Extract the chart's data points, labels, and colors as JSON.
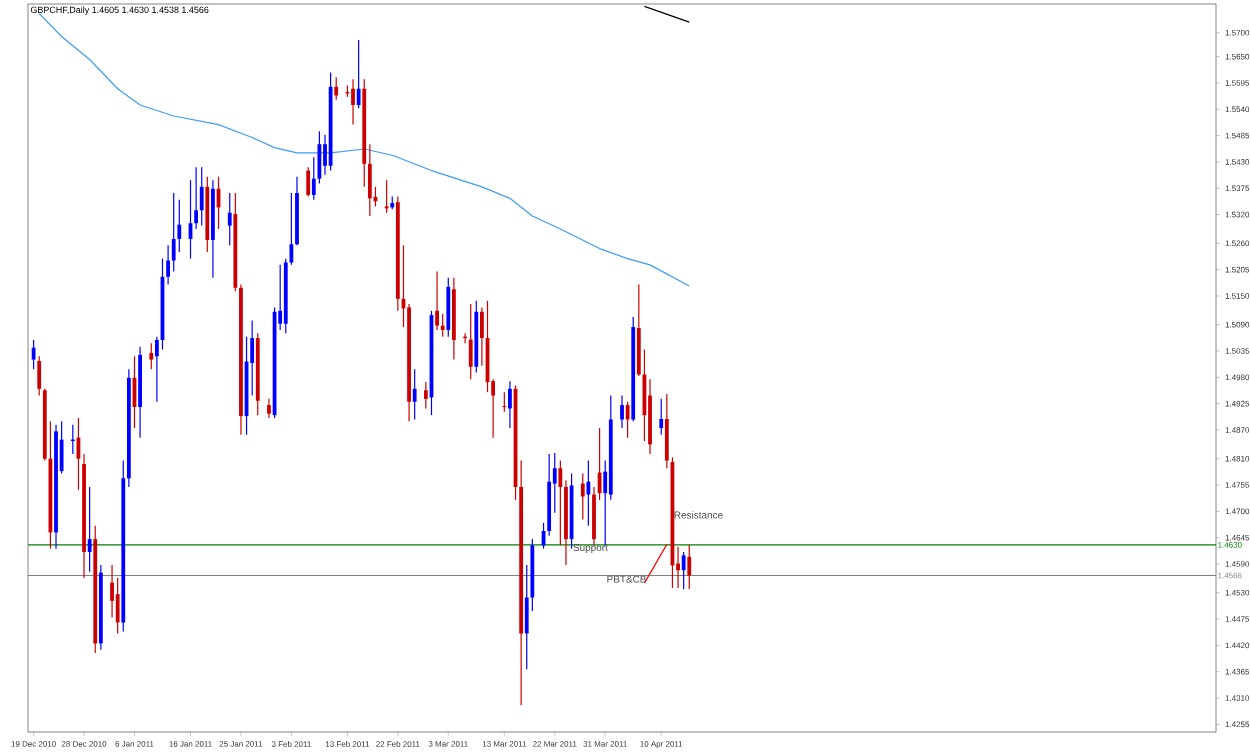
{
  "chart_data": {
    "type": "candlestick",
    "title": "GBPCHF,Daily  1.4605 1.4630 1.4538 1.4566",
    "x": [
      "2010-12-19",
      "2010-12-20",
      "2010-12-21",
      "2010-12-22",
      "2010-12-23",
      "2010-12-24",
      "2010-12-26",
      "2010-12-27",
      "2010-12-28",
      "2010-12-29",
      "2010-12-30",
      "2010-12-31",
      "2011-01-02",
      "2011-01-03",
      "2011-01-04",
      "2011-01-05",
      "2011-01-06",
      "2011-01-07",
      "2011-01-09",
      "2011-01-10",
      "2011-01-11",
      "2011-01-12",
      "2011-01-13",
      "2011-01-14",
      "2011-01-16",
      "2011-01-17",
      "2011-01-18",
      "2011-01-19",
      "2011-01-20",
      "2011-01-21",
      "2011-01-23",
      "2011-01-24",
      "2011-01-25",
      "2011-01-26",
      "2011-01-27",
      "2011-01-28",
      "2011-01-30",
      "2011-01-31",
      "2011-02-01",
      "2011-02-02",
      "2011-02-03",
      "2011-02-04",
      "2011-02-06",
      "2011-02-07",
      "2011-02-08",
      "2011-02-09",
      "2011-02-10",
      "2011-02-11",
      "2011-02-13",
      "2011-02-14",
      "2011-02-15",
      "2011-02-16",
      "2011-02-17",
      "2011-02-18",
      "2011-02-20",
      "2011-02-21",
      "2011-02-22",
      "2011-02-23",
      "2011-02-24",
      "2011-02-25",
      "2011-02-27",
      "2011-02-28",
      "2011-03-01",
      "2011-03-02",
      "2011-03-03",
      "2011-03-04",
      "2011-03-06",
      "2011-03-07",
      "2011-03-08",
      "2011-03-09",
      "2011-03-10",
      "2011-03-11",
      "2011-03-13",
      "2011-03-14",
      "2011-03-15",
      "2011-03-16",
      "2011-03-17",
      "2011-03-18",
      "2011-03-20",
      "2011-03-21",
      "2011-03-22",
      "2011-03-23",
      "2011-03-24",
      "2011-03-25",
      "2011-03-27",
      "2011-03-28",
      "2011-03-29",
      "2011-03-30",
      "2011-03-31",
      "2011-04-01",
      "2011-04-03",
      "2011-04-04",
      "2011-04-05",
      "2011-04-06",
      "2011-04-07",
      "2011-04-08",
      "2011-04-10",
      "2011-04-11",
      "2011-04-12",
      "2011-04-13",
      "2011-04-14",
      "2011-04-15"
    ],
    "ohlc": [
      [
        1.5017,
        1.5058,
        1.4997,
        1.5042
      ],
      [
        1.5014,
        1.5024,
        1.4942,
        1.4956
      ],
      [
        1.4953,
        1.4956,
        1.4806,
        1.481
      ],
      [
        1.481,
        1.4888,
        1.4622,
        1.4656
      ],
      [
        1.4656,
        1.4881,
        1.4622,
        1.4867
      ],
      [
        1.4784,
        1.4888,
        1.4779,
        1.485
      ],
      [
        1.4847,
        1.4881,
        1.482,
        1.485
      ],
      [
        1.4854,
        1.4895,
        1.4745,
        1.481
      ],
      [
        1.4799,
        1.482,
        1.4561,
        1.4615
      ],
      [
        1.4615,
        1.4751,
        1.4574,
        1.4642
      ],
      [
        1.4642,
        1.467,
        1.4404,
        1.4424
      ],
      [
        1.4424,
        1.4588,
        1.4411,
        1.4572
      ],
      [
        1.4551,
        1.4588,
        1.4479,
        1.4513
      ],
      [
        1.4527,
        1.4561,
        1.4445,
        1.4468
      ],
      [
        1.4468,
        1.4806,
        1.4449,
        1.4769
      ],
      [
        1.4769,
        1.4997,
        1.4751,
        1.4979
      ],
      [
        1.4979,
        1.5024,
        1.4874,
        1.4918
      ],
      [
        1.4918,
        1.5044,
        1.4854,
        1.5027
      ],
      [
        1.5031,
        1.5051,
        1.4997,
        1.5017
      ],
      [
        1.5024,
        1.5065,
        1.4929,
        1.5058
      ],
      [
        1.5058,
        1.5228,
        1.5038,
        1.519
      ],
      [
        1.519,
        1.5256,
        1.5174,
        1.5224
      ],
      [
        1.5224,
        1.5365,
        1.5201,
        1.5269
      ],
      [
        1.5269,
        1.5351,
        1.5242,
        1.5299
      ],
      [
        1.5269,
        1.5392,
        1.5228,
        1.5302
      ],
      [
        1.5302,
        1.5419,
        1.529,
        1.5329
      ],
      [
        1.5329,
        1.5419,
        1.5297,
        1.5378
      ],
      [
        1.5378,
        1.5399,
        1.5242,
        1.5267
      ],
      [
        1.5267,
        1.5392,
        1.5188,
        1.5374
      ],
      [
        1.5374,
        1.5399,
        1.529,
        1.5335
      ],
      [
        1.5297,
        1.5365,
        1.5256,
        1.5324
      ],
      [
        1.5321,
        1.5365,
        1.516,
        1.5167
      ],
      [
        1.5167,
        1.5174,
        1.486,
        1.4899
      ],
      [
        1.4899,
        1.5065,
        1.486,
        1.5013
      ],
      [
        1.501,
        1.5099,
        1.4942,
        1.5062
      ],
      [
        1.5062,
        1.5072,
        1.4901,
        1.4931
      ],
      [
        1.4922,
        1.4935,
        1.4895,
        1.4904
      ],
      [
        1.4901,
        1.5126,
        1.4895,
        1.5117
      ],
      [
        1.5092,
        1.5215,
        1.5079,
        1.5119
      ],
      [
        1.5092,
        1.5228,
        1.5072,
        1.522
      ],
      [
        1.522,
        1.5365,
        1.5215,
        1.5258
      ],
      [
        1.5258,
        1.5399,
        1.5256,
        1.5365
      ],
      [
        1.5412,
        1.5419,
        1.5358,
        1.5361
      ],
      [
        1.5361,
        1.544,
        1.5351,
        1.5395
      ],
      [
        1.5395,
        1.5494,
        1.5385,
        1.5467
      ],
      [
        1.5422,
        1.5487,
        1.5403,
        1.5467
      ],
      [
        1.5422,
        1.5617,
        1.5412,
        1.5587
      ],
      [
        1.5587,
        1.5607,
        1.556,
        1.5569
      ],
      [
        1.5576,
        1.559,
        1.5566,
        1.5573
      ],
      [
        1.5583,
        1.5603,
        1.5508,
        1.5549
      ],
      [
        1.5549,
        1.5685,
        1.5542,
        1.5583
      ],
      [
        1.5583,
        1.5603,
        1.5378,
        1.5426
      ],
      [
        1.5426,
        1.5467,
        1.5317,
        1.5354
      ],
      [
        1.5357,
        1.5378,
        1.5337,
        1.5348
      ],
      [
        1.5337,
        1.5392,
        1.5324,
        1.5333
      ],
      [
        1.5335,
        1.5358,
        1.5331,
        1.5344
      ],
      [
        1.5346,
        1.5358,
        1.5119,
        1.5144
      ],
      [
        1.5144,
        1.5256,
        1.5085,
        1.5124
      ],
      [
        1.5126,
        1.5133,
        1.4888,
        1.4929
      ],
      [
        1.4929,
        1.4997,
        1.4892,
        1.4956
      ],
      [
        1.4953,
        1.497,
        1.4915,
        1.4935
      ],
      [
        1.4938,
        1.5119,
        1.4901,
        1.511
      ],
      [
        1.5119,
        1.5201,
        1.5079,
        1.5088
      ],
      [
        1.5088,
        1.5113,
        1.5065,
        1.5079
      ],
      [
        1.5079,
        1.5188,
        1.5065,
        1.5169
      ],
      [
        1.5164,
        1.5188,
        1.5017,
        1.5058
      ],
      [
        1.5065,
        1.5072,
        1.5051,
        1.5062
      ],
      [
        1.5059,
        1.5133,
        1.4976,
        1.5002
      ],
      [
        1.5002,
        1.514,
        1.499,
        1.5117
      ],
      [
        1.5117,
        1.5126,
        1.5004,
        1.5062
      ],
      [
        1.5062,
        1.514,
        1.4949,
        1.497
      ],
      [
        1.4972,
        1.4976,
        1.4854,
        1.4942
      ],
      [
        1.492,
        1.4949,
        1.4908,
        1.4918
      ],
      [
        1.4915,
        1.4972,
        1.4874,
        1.4956
      ],
      [
        1.4956,
        1.4963,
        1.4724,
        1.4751
      ],
      [
        1.4751,
        1.4806,
        1.4295,
        1.4445
      ],
      [
        1.4445,
        1.4588,
        1.437,
        1.452
      ],
      [
        1.452,
        1.4642,
        1.4492,
        1.4629
      ],
      [
        1.4629,
        1.4676,
        1.4622,
        1.4659
      ],
      [
        1.4659,
        1.482,
        1.4649,
        1.4762
      ],
      [
        1.4758,
        1.4822,
        1.4697,
        1.479
      ],
      [
        1.479,
        1.4806,
        1.4629,
        1.4751
      ],
      [
        1.4751,
        1.4765,
        1.4588,
        1.4642
      ],
      [
        1.4642,
        1.4779,
        1.4622,
        1.4754
      ],
      [
        1.4758,
        1.4779,
        1.4683,
        1.4731
      ],
      [
        1.4735,
        1.4806,
        1.467,
        1.4762
      ],
      [
        1.4735,
        1.4751,
        1.4629,
        1.4642
      ],
      [
        1.4781,
        1.4874,
        1.4724,
        1.4738
      ],
      [
        1.4738,
        1.4806,
        1.4629,
        1.4783
      ],
      [
        1.4735,
        1.4942,
        1.4724,
        1.4892
      ],
      [
        1.4892,
        1.4942,
        1.4874,
        1.4922
      ],
      [
        1.4922,
        1.4929,
        1.4854,
        1.4892
      ],
      [
        1.4892,
        1.5106,
        1.4888,
        1.5085
      ],
      [
        1.5083,
        1.5174,
        1.4983,
        1.4986
      ],
      [
        1.4986,
        1.5038,
        1.4847,
        1.4901
      ],
      [
        1.4942,
        1.4976,
        1.482,
        1.484
      ],
      [
        1.4874,
        1.4935,
        1.486,
        1.4893
      ],
      [
        1.4893,
        1.4945,
        1.479,
        1.4806
      ],
      [
        1.4803,
        1.4813,
        1.454,
        1.4587
      ],
      [
        1.4591,
        1.4626,
        1.454,
        1.4577
      ],
      [
        1.4577,
        1.4615,
        1.4537,
        1.4608
      ],
      [
        1.4605,
        1.463,
        1.4538,
        1.4566
      ]
    ],
    "colors": [
      "#0000ff",
      "#cc0000",
      "#cc0000",
      "#cc0000",
      "#0000ff",
      "#0000ff",
      "#0000ff",
      "#cc0000",
      "#cc0000",
      "#0000ff",
      "#cc0000",
      "#0000ff",
      "#cc0000",
      "#cc0000",
      "#0000ff",
      "#0000ff",
      "#cc0000",
      "#0000ff",
      "#cc0000",
      "#0000ff",
      "#0000ff",
      "#0000ff",
      "#0000ff",
      "#0000ff",
      "#0000ff",
      "#0000ff",
      "#0000ff",
      "#cc0000",
      "#0000ff",
      "#cc0000",
      "#0000ff",
      "#cc0000",
      "#cc0000",
      "#0000ff",
      "#0000ff",
      "#cc0000",
      "#cc0000",
      "#0000ff",
      "#0000ff",
      "#0000ff",
      "#0000ff",
      "#0000ff",
      "#cc0000",
      "#0000ff",
      "#0000ff",
      "#0000ff",
      "#0000ff",
      "#cc0000",
      "#cc0000",
      "#cc0000",
      "#0000ff",
      "#cc0000",
      "#cc0000",
      "#cc0000",
      "#cc0000",
      "#0000ff",
      "#cc0000",
      "#cc0000",
      "#cc0000",
      "#0000ff",
      "#cc0000",
      "#0000ff",
      "#cc0000",
      "#cc0000",
      "#0000ff",
      "#cc0000",
      "#cc0000",
      "#cc0000",
      "#0000ff",
      "#cc0000",
      "#cc0000",
      "#cc0000",
      "#cc0000",
      "#0000ff",
      "#cc0000",
      "#cc0000",
      "#0000ff",
      "#0000ff",
      "#0000ff",
      "#0000ff",
      "#0000ff",
      "#cc0000",
      "#cc0000",
      "#0000ff",
      "#cc0000",
      "#0000ff",
      "#cc0000",
      "#cc0000",
      "#0000ff",
      "#0000ff",
      "#0000ff",
      "#cc0000",
      "#0000ff",
      "#cc0000",
      "#cc0000",
      "#cc0000",
      "#0000ff",
      "#cc0000",
      "#cc0000",
      "#cc0000",
      "#0000ff",
      "#cc0000"
    ],
    "series": [
      {
        "type": "line",
        "color": "#3d9bff",
        "x": [
          "2010-12-20",
          "2010-12-24",
          "2010-12-29",
          "2011-01-03",
          "2011-01-07",
          "2011-01-13",
          "2011-01-21",
          "2011-01-27",
          "2011-01-31",
          "2011-02-04",
          "2011-02-10",
          "2011-02-16",
          "2011-02-21",
          "2011-02-28",
          "2011-03-09",
          "2011-03-14",
          "2011-03-18",
          "2011-03-23",
          "2011-03-30",
          "2011-04-04",
          "2011-04-08",
          "2011-04-15"
        ],
        "values": [
          1.574,
          1.5692,
          1.5644,
          1.5583,
          1.5549,
          1.5526,
          1.5508,
          1.5481,
          1.546,
          1.5449,
          1.5449,
          1.5457,
          1.5444,
          1.5412,
          1.5378,
          1.5354,
          1.5317,
          1.529,
          1.5249,
          1.5228,
          1.5215,
          1.5171
        ]
      },
      {
        "type": "line",
        "color": "#000000",
        "x": [
          "2011-04-07",
          "2011-04-15"
        ],
        "values": [
          1.5755,
          1.5722
        ]
      },
      {
        "type": "line",
        "color": "#ff0000",
        "x": [
          "2011-04-07",
          "2011-04-11"
        ],
        "values": [
          1.455,
          1.4631
        ]
      }
    ],
    "ref_lines": [
      {
        "axis": "y",
        "value": 1.463,
        "label": "1.4630",
        "color": "#008000"
      },
      {
        "axis": "y",
        "value": 1.4566,
        "label": "1.4566",
        "color": "#808080"
      }
    ],
    "annotations": [
      {
        "text": "Support",
        "x": "2011-03-25",
        "y": 1.461
      },
      {
        "text": "Resistance",
        "x": "2011-04-12",
        "y": 1.4682
      },
      {
        "text": "PBT&CB",
        "x": "2011-03-31",
        "y": 1.4548
      }
    ],
    "xlim": [
      "2010-12-18",
      "2011-07-18"
    ],
    "xticks": [
      {
        "value": "2010-12-19",
        "label": "19 Dec 2010"
      },
      {
        "value": "2010-12-28",
        "label": "28 Dec 2010"
      },
      {
        "value": "2011-01-06",
        "label": "6 Jan 2011"
      },
      {
        "value": "2011-01-16",
        "label": "16 Jan 2011"
      },
      {
        "value": "2011-01-25",
        "label": "25 Jan 2011"
      },
      {
        "value": "2011-02-03",
        "label": "3 Feb 2011"
      },
      {
        "value": "2011-02-13",
        "label": "13 Feb 2011"
      },
      {
        "value": "2011-02-22",
        "label": "22 Feb 2011"
      },
      {
        "value": "2011-03-03",
        "label": "3 Mar 2011"
      },
      {
        "value": "2011-03-13",
        "label": "13 Mar 2011"
      },
      {
        "value": "2011-03-22",
        "label": "22 Mar 2011"
      },
      {
        "value": "2011-03-31",
        "label": "31 Mar 2011"
      },
      {
        "value": "2011-04-10",
        "label": "10 Apr 2011"
      }
    ],
    "ylim": [
      1.4239,
      1.576
    ],
    "yticks": [
      {
        "value": 1.57,
        "label": "1.5700"
      },
      {
        "value": 1.565,
        "label": "1.5650"
      },
      1.5595,
      {
        "value": 1.554,
        "label": "1.5540"
      },
      1.5485,
      {
        "value": 1.543,
        "label": "1.5430"
      },
      1.5375,
      {
        "value": 1.532,
        "label": "1.5320"
      },
      {
        "value": 1.526,
        "label": "1.5260"
      },
      1.5205,
      {
        "value": 1.515,
        "label": "1.5150"
      },
      {
        "value": 1.509,
        "label": "1.5090"
      },
      1.5035,
      {
        "value": 1.498,
        "label": "1.4980"
      },
      1.4925,
      {
        "value": 1.487,
        "label": "1.4870"
      },
      {
        "value": 1.481,
        "label": "1.4810"
      },
      1.4755,
      {
        "value": 1.47,
        "label": "1.4700"
      },
      1.4645,
      {
        "value": 1.459,
        "label": "1.4590"
      },
      {
        "value": 1.453,
        "label": "1.4530"
      },
      1.4475,
      {
        "value": 1.442,
        "label": "1.4420"
      },
      1.4365,
      {
        "value": 1.431,
        "label": "1.4310"
      },
      1.4255
    ]
  }
}
